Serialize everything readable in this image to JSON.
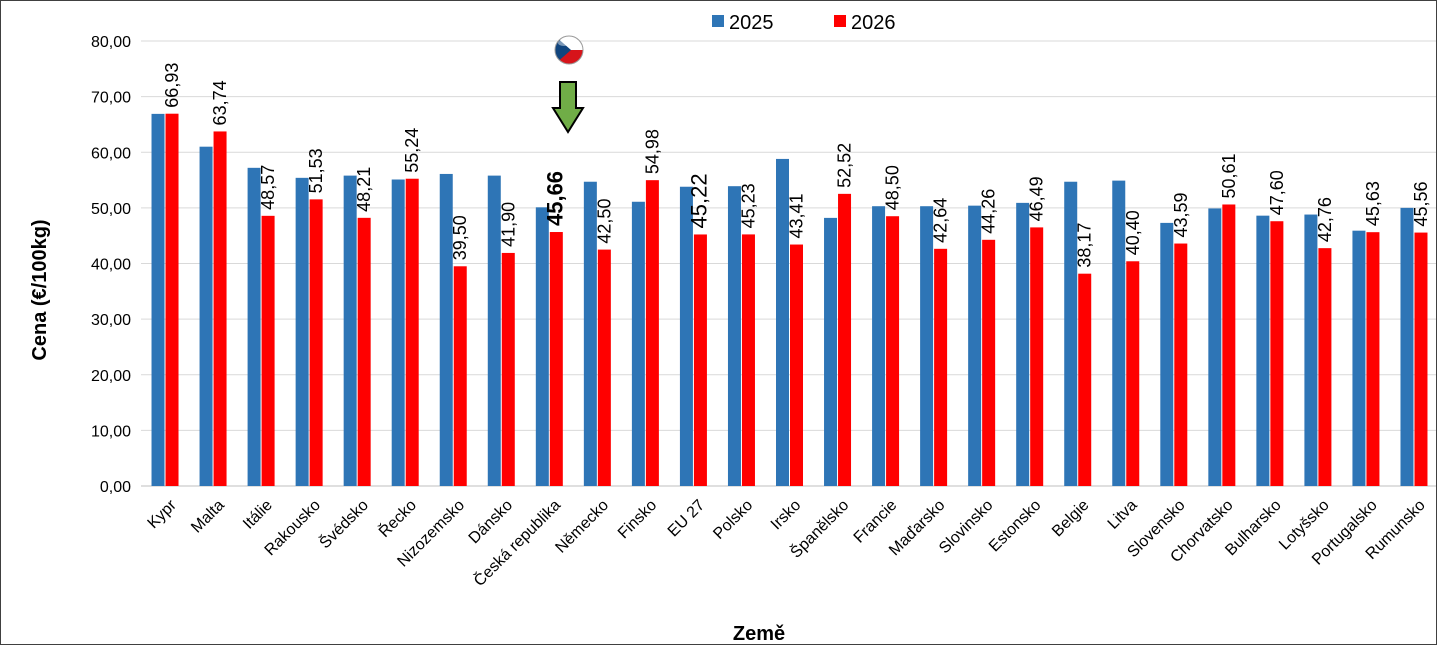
{
  "chart_data": {
    "type": "bar",
    "title": "",
    "xlabel": "Země",
    "ylabel": "Cena (€/100kg)",
    "ylim": [
      0,
      80
    ],
    "yticks": [
      "0,00",
      "10,00",
      "20,00",
      "30,00",
      "40,00",
      "50,00",
      "60,00",
      "70,00",
      "80,00"
    ],
    "grid": true,
    "legend": "top-center",
    "highlight_category": "Česká republika",
    "highlight_marker": [
      "czech-flag-icon",
      "down-arrow-icon"
    ],
    "colors": {
      "2025": "#2E75B6",
      "2026": "#FF0000",
      "arrow": "#70AD47"
    },
    "categories": [
      "Kypr",
      "Malta",
      "Itálie",
      "Rakousko",
      "Švédsko",
      "Řecko",
      "Nizozemsko",
      "Dánsko",
      "Česká republika",
      "Německo",
      "Finsko",
      "EU 27",
      "Polsko",
      "Irsko",
      "Španělsko",
      "Francie",
      "Maďarsko",
      "Slovinsko",
      "Estonsko",
      "Belgie",
      "Litva",
      "Slovensko",
      "Chorvatsko",
      "Bulharsko",
      "Lotyšsko",
      "Portugalsko",
      "Rumunsko"
    ],
    "series": [
      {
        "name": "2025",
        "values": [
          66.9,
          61.0,
          57.2,
          55.4,
          55.8,
          55.1,
          56.1,
          55.8,
          50.1,
          54.7,
          51.1,
          53.8,
          53.9,
          58.8,
          48.2,
          50.3,
          50.3,
          50.4,
          50.9,
          54.7,
          54.9,
          47.3,
          49.9,
          48.6,
          48.8,
          45.9,
          50.0
        ]
      },
      {
        "name": "2026",
        "values": [
          66.93,
          63.74,
          48.57,
          51.53,
          48.21,
          55.24,
          39.5,
          41.9,
          45.66,
          42.5,
          54.98,
          45.22,
          45.23,
          43.41,
          52.52,
          48.5,
          42.64,
          44.26,
          46.49,
          38.17,
          40.4,
          43.59,
          50.61,
          47.6,
          42.76,
          45.63,
          45.56
        ]
      }
    ],
    "data_labels": [
      "66,93",
      "63,74",
      "48,57",
      "51,53",
      "48,21",
      "55,24",
      "39,50",
      "41,90",
      "45,66",
      "42,50",
      "54,98",
      "45,22",
      "45,23",
      "43,41",
      "52,52",
      "48,50",
      "42,64",
      "44,26",
      "46,49",
      "38,17",
      "40,40",
      "43,59",
      "50,61",
      "47,60",
      "42,76",
      "45,63",
      "45,56"
    ]
  }
}
